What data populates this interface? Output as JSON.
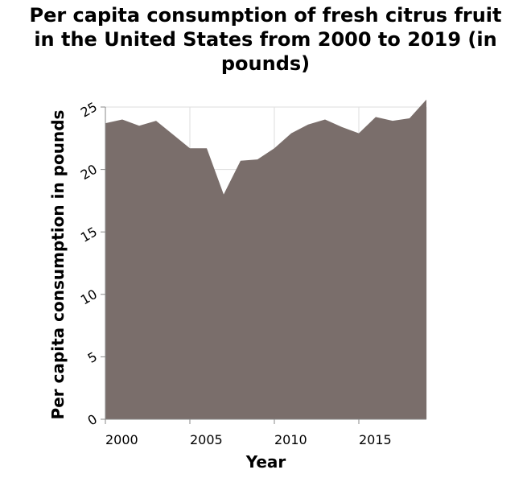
{
  "chart_data": {
    "type": "area",
    "title_lines": [
      "Per capita consumption of fresh citrus fruit",
      "in the United States from 2000 to 2019 (in",
      "pounds)"
    ],
    "xlabel": "Year",
    "ylabel": "Per capita consumption in pounds",
    "xlim": [
      2000,
      2019
    ],
    "ylim": [
      0,
      25
    ],
    "x_ticks": [
      2000,
      2005,
      2010,
      2015
    ],
    "y_ticks": [
      0,
      5,
      10,
      15,
      20,
      25
    ],
    "grid": true,
    "fill_color": "#7a6e6b",
    "x": [
      2000,
      2001,
      2002,
      2003,
      2004,
      2005,
      2006,
      2007,
      2008,
      2009,
      2010,
      2011,
      2012,
      2013,
      2014,
      2015,
      2016,
      2017,
      2018,
      2019
    ],
    "values": [
      23.7,
      24.0,
      23.5,
      23.9,
      22.8,
      21.7,
      21.7,
      18.0,
      20.7,
      20.8,
      21.7,
      22.9,
      23.6,
      24.0,
      23.4,
      22.9,
      24.2,
      23.9,
      24.1,
      25.6
    ]
  }
}
